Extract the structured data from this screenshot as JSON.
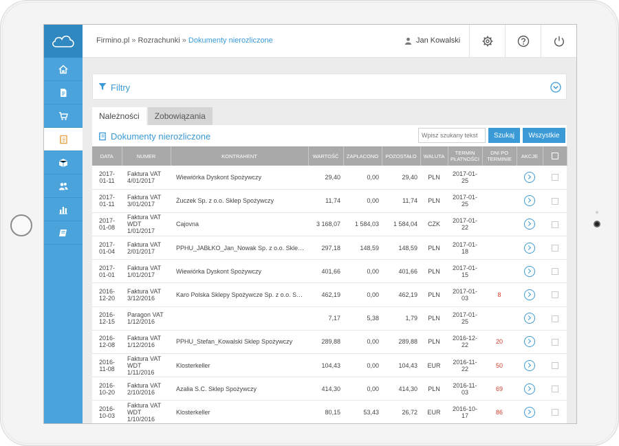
{
  "breadcrumb": {
    "part1": "Firmino.pl",
    "sep1": " » ",
    "part2": "Rozrachunki",
    "sep2": " » ",
    "current": "Dokumenty nierozliczone"
  },
  "user": {
    "name": "Jan Kowalski"
  },
  "icons": {
    "logo": "cloud-logo-icon",
    "nav": [
      "home-icon",
      "document-icon",
      "cart-icon",
      "ledger-icon",
      "box-icon",
      "users-icon",
      "bar-chart-icon",
      "book-icon"
    ],
    "header": [
      "gear-icon",
      "help-icon",
      "power-icon"
    ]
  },
  "colors": {
    "accent": "#3a9ad6",
    "sidebar": "#4aa3da",
    "logo_bg": "#2f89c0",
    "overdue": "#d33a2c",
    "table_header": "#a9a9a9"
  },
  "filters": {
    "title": "Filtry"
  },
  "tabs": [
    {
      "label": "Należności",
      "active": true
    },
    {
      "label": "Zobowiązania",
      "active": false
    }
  ],
  "panel": {
    "title": "Dokumenty nierozliczone"
  },
  "search": {
    "placeholder": "Wpisz szukany tekst",
    "search_label": "Szukaj",
    "all_label": "Wszystkie"
  },
  "table": {
    "headers": {
      "date": "DATA",
      "number": "NUMER",
      "contractor": "KONTRAHENT",
      "value": "WARTOŚĆ",
      "paid": "ZAPŁACONO",
      "remaining": "POZOSTAŁO",
      "currency": "WALUTA",
      "term": "TERMIN PŁATNOŚCI",
      "days": "DNI PO TERMINIE",
      "actions": "AKCJE"
    },
    "rows": [
      {
        "date": "2017-01-11",
        "number": "Faktura VAT 4/01/2017",
        "contractor": "Wiewiórka Dyskont Spożywczy",
        "value": "29,40",
        "paid": "0,00",
        "remaining": "29,40",
        "currency": "PLN",
        "term": "2017-01-25",
        "days": ""
      },
      {
        "date": "2017-01-11",
        "number": "Faktura VAT 3/01/2017",
        "contractor": "Żuczek Sp. z o.o. Sklep Spożywczy",
        "value": "11,74",
        "paid": "0,00",
        "remaining": "11,74",
        "currency": "PLN",
        "term": "2017-01-25",
        "days": ""
      },
      {
        "date": "2017-01-08",
        "number": "Faktura VAT WDT 1/01/2017",
        "contractor": "Cajovna",
        "value": "3 168,07",
        "paid": "1 584,03",
        "remaining": "1 584,04",
        "currency": "CZK",
        "term": "2017-01-22",
        "days": ""
      },
      {
        "date": "2017-01-04",
        "number": "Faktura VAT 2/01/2017",
        "contractor": "PPHU_JABŁKO_Jan_Nowak Sp. z o.o. Sklep Spożywczy",
        "value": "297,18",
        "paid": "148,59",
        "remaining": "148,59",
        "currency": "PLN",
        "term": "2017-01-18",
        "days": ""
      },
      {
        "date": "2017-01-01",
        "number": "Faktura VAT 1/01/2017",
        "contractor": "Wiewiórka Dyskont Spożywczy",
        "value": "401,66",
        "paid": "0,00",
        "remaining": "401,66",
        "currency": "PLN",
        "term": "2017-01-15",
        "days": ""
      },
      {
        "date": "2016-12-20",
        "number": "Faktura VAT 3/12/2016",
        "contractor": "Karo Polska Sklepy Spożywcze Sp. z o.o. Sp.k.",
        "value": "462,19",
        "paid": "0,00",
        "remaining": "462,19",
        "currency": "PLN",
        "term": "2017-01-03",
        "days": "8"
      },
      {
        "date": "2016-12-15",
        "number": "Paragon VAT 1/12/2016",
        "contractor": "",
        "value": "7,17",
        "paid": "5,38",
        "remaining": "1,79",
        "currency": "PLN",
        "term": "2017-01-25",
        "days": ""
      },
      {
        "date": "2016-12-08",
        "number": "Faktura VAT 1/12/2016",
        "contractor": "PPHU_Stefan_Kowalski Sklep Spożywczy",
        "value": "289,88",
        "paid": "0,00",
        "remaining": "289,88",
        "currency": "PLN",
        "term": "2016-12-22",
        "days": "20"
      },
      {
        "date": "2016-11-08",
        "number": "Faktura VAT WDT 1/11/2016",
        "contractor": "Klosterkeller",
        "value": "104,43",
        "paid": "0,00",
        "remaining": "104,43",
        "currency": "EUR",
        "term": "2016-11-22",
        "days": "50"
      },
      {
        "date": "2016-10-20",
        "number": "Faktura VAT 2/10/2016",
        "contractor": "Azalia S.C. Sklep Spożywczy",
        "value": "414,30",
        "paid": "0,00",
        "remaining": "414,30",
        "currency": "PLN",
        "term": "2016-11-03",
        "days": "69"
      },
      {
        "date": "2016-10-03",
        "number": "Faktura VAT WDT 1/10/2016",
        "contractor": "Klosterkeller",
        "value": "80,15",
        "paid": "53,43",
        "remaining": "26,72",
        "currency": "EUR",
        "term": "2016-10-17",
        "days": "86"
      }
    ]
  }
}
